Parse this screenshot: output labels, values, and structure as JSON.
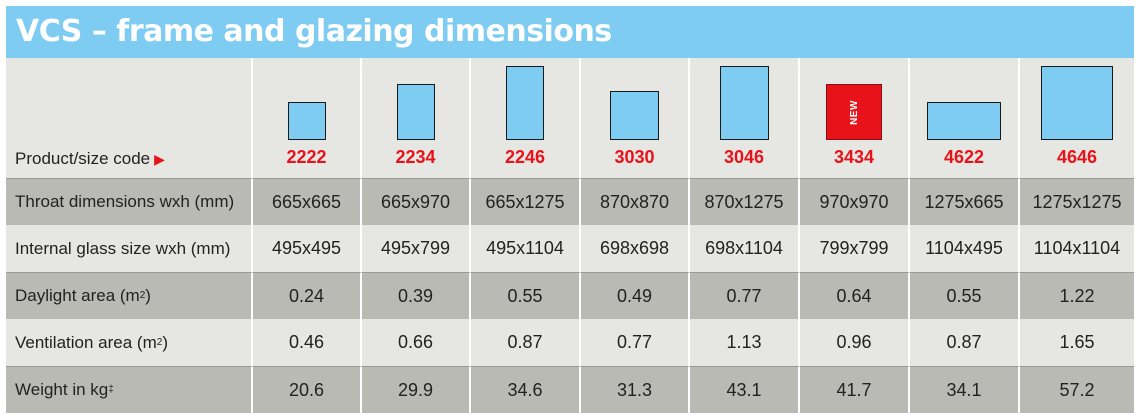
{
  "title": "VCS – frame and glazing dimensions",
  "header_label": "Product/size code",
  "arrow_glyph": "▶",
  "new_label": "NEW",
  "products": [
    {
      "code": "2222",
      "new": false
    },
    {
      "code": "2234",
      "new": false
    },
    {
      "code": "2246",
      "new": false
    },
    {
      "code": "3030",
      "new": false
    },
    {
      "code": "3046",
      "new": false
    },
    {
      "code": "3434",
      "new": true
    },
    {
      "code": "4622",
      "new": false
    },
    {
      "code": "4646",
      "new": false
    }
  ],
  "rows": [
    {
      "label": "Throat dimensions wxh (mm)",
      "values": [
        "665x665",
        "665x970",
        "665x1275",
        "870x870",
        "870x1275",
        "970x970",
        "1275x665",
        "1275x1275"
      ]
    },
    {
      "label": "Internal glass size wxh (mm)",
      "values": [
        "495x495",
        "495x799",
        "495x1104",
        "698x698",
        "698x1104",
        "799x799",
        "1104x495",
        "1104x1104"
      ]
    },
    {
      "label": "Daylight area (m",
      "label_sup": "2",
      "label_tail": ")",
      "values": [
        "0.24",
        "0.39",
        "0.55",
        "0.49",
        "0.77",
        "0.64",
        "0.55",
        "1.22"
      ]
    },
    {
      "label": "Ventilation area (m",
      "label_sup": "2",
      "label_tail": ")",
      "values": [
        "0.46",
        "0.66",
        "0.87",
        "0.77",
        "1.13",
        "0.96",
        "0.87",
        "1.65"
      ]
    },
    {
      "label": "Weight in kg",
      "label_sup": "‡",
      "label_tail": "",
      "values": [
        "20.6",
        "29.9",
        "34.6",
        "31.3",
        "43.1",
        "41.7",
        "34.1",
        "57.2"
      ]
    }
  ],
  "colors": {
    "title_bg": "#7fccf2",
    "window_fill": "#7fccf2",
    "new_fill": "#e8131a",
    "code_text": "#e8131a",
    "row_dark": "#b9bab4",
    "row_light": "#e6e6e2"
  }
}
